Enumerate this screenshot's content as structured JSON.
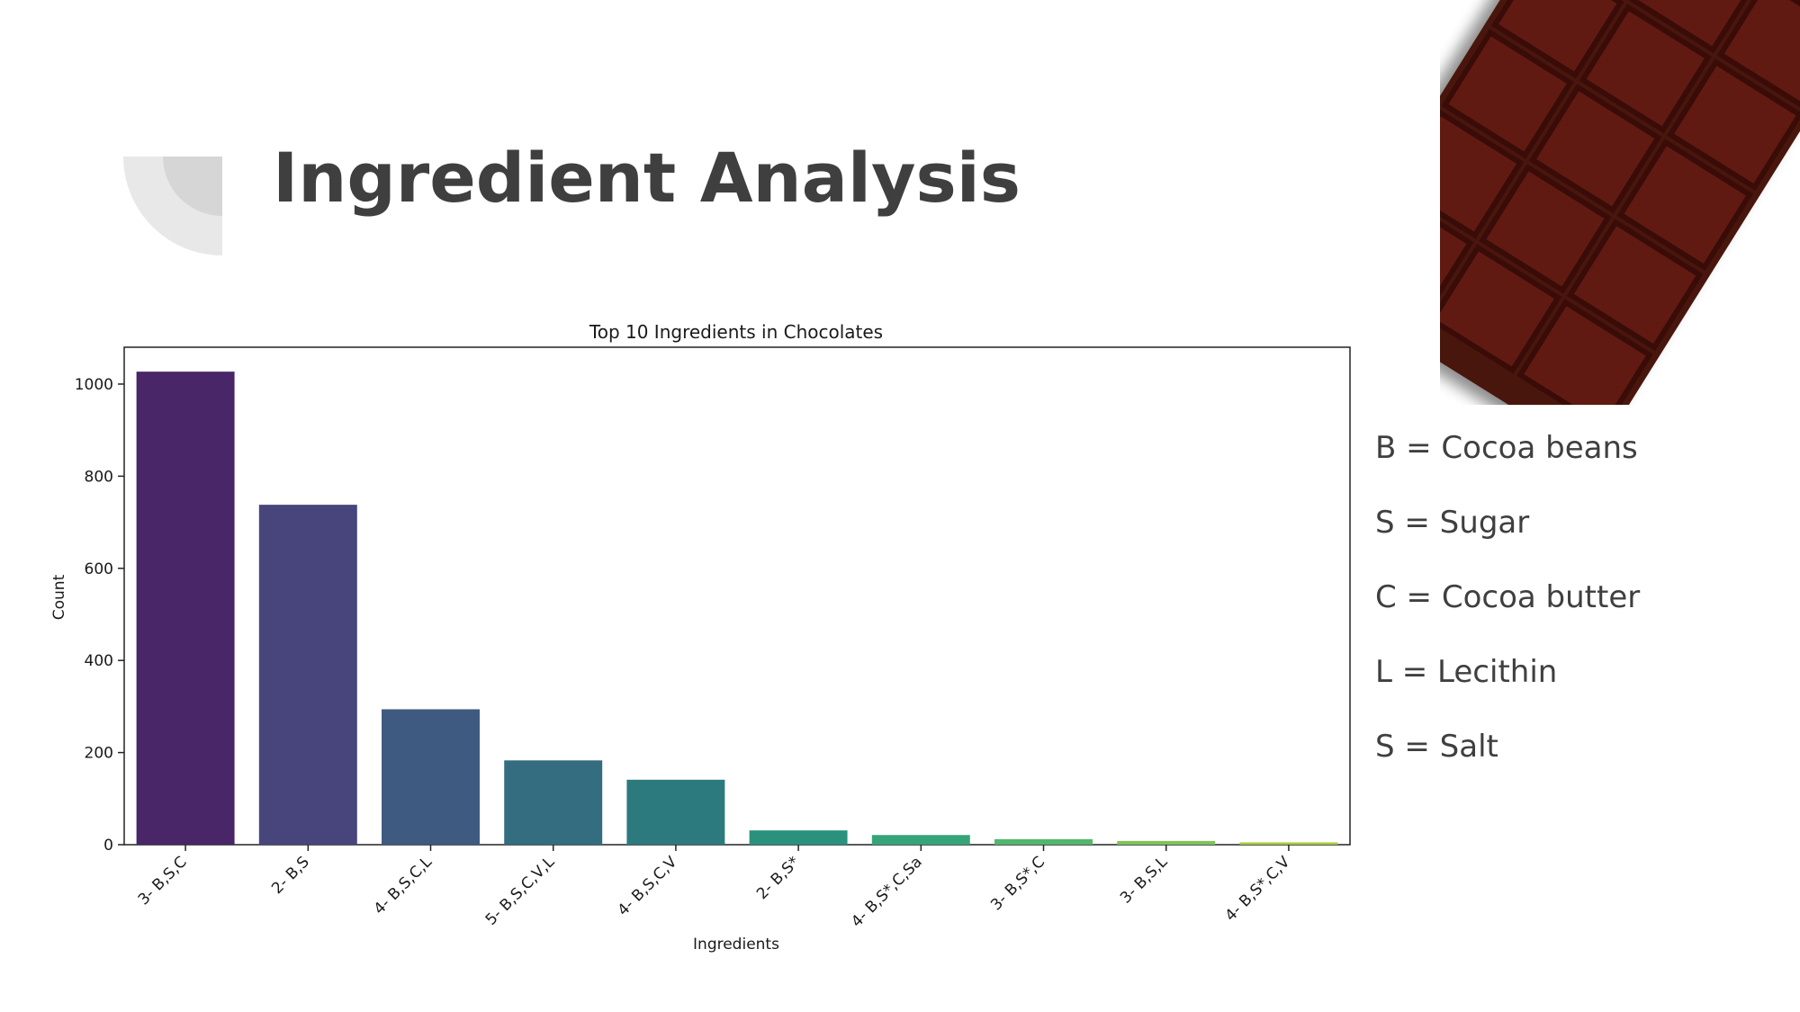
{
  "slide": {
    "title": "Ingredient Analysis"
  },
  "legend_items": [
    "B = Cocoa beans",
    "S = Sugar",
    "C = Cocoa butter",
    "L = Lecithin",
    "S = Salt"
  ],
  "chart_data": {
    "type": "bar",
    "title": "Top 10 Ingredients in Chocolates",
    "xlabel": "Ingredients",
    "ylabel": "Count",
    "categories": [
      "3- B,S,C",
      "2- B,S",
      "4- B,S,C,L",
      "5- B,S,C,V,L",
      "4- B,S,C,V",
      "2- B,S*",
      "4- B,S*,C,Sa",
      "3- B,S*,C",
      "3- B,S,L",
      "4- B,S*,C,V"
    ],
    "values": [
      1027,
      738,
      294,
      183,
      141,
      31,
      21,
      12,
      8,
      5
    ],
    "ylim": [
      0,
      1080
    ],
    "yticks": [
      0,
      200,
      400,
      600,
      800,
      1000
    ],
    "grid": false,
    "colors": [
      "#482667",
      "#47457b",
      "#3e5a80",
      "#346d7f",
      "#2c7a7d",
      "#2a917d",
      "#36a479",
      "#52b66d",
      "#7cc456",
      "#a4cd3a"
    ]
  },
  "colors": {
    "title": "#3f3f3f",
    "chocolate": "#5a1610"
  }
}
